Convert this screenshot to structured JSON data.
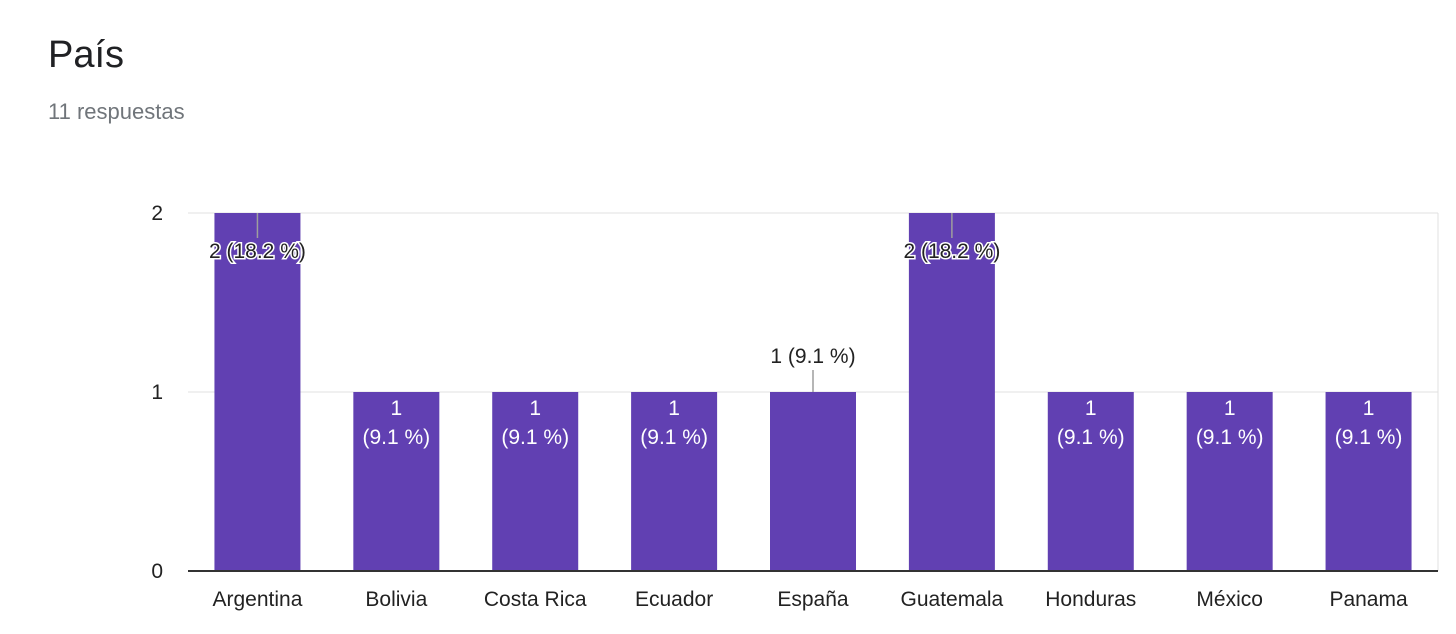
{
  "question": {
    "title": "País",
    "responses": "11 respuestas"
  },
  "colors": {
    "bar": "#6140b2",
    "grid": "#e0e0e0",
    "axis": "#333333",
    "label_dark": "#222222",
    "label_light": "#ffffff"
  },
  "chart_data": {
    "type": "bar",
    "categories": [
      "Argentina",
      "Bolivia",
      "Costa Rica",
      "Ecuador",
      "España",
      "Guatemala",
      "Honduras",
      "México",
      "Panama"
    ],
    "values": [
      2,
      1,
      1,
      1,
      1,
      2,
      1,
      1,
      1
    ],
    "data_labels": [
      "2 (18.2 %)",
      "1 (9.1 %)",
      "1 (9.1 %)",
      "1 (9.1 %)",
      "1 (9.1 %)",
      "2 (18.2 %)",
      "1 (9.1 %)",
      "1 (9.1 %)",
      "1 (9.1 %)"
    ],
    "y_ticks": [
      "0",
      "1",
      "2"
    ],
    "ylim": [
      0,
      2
    ],
    "title": "País",
    "xlabel": "",
    "ylabel": "",
    "grid": true,
    "legend": "none"
  }
}
